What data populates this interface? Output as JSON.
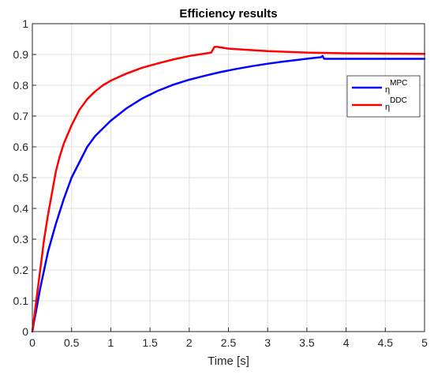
{
  "chart_data": {
    "type": "line",
    "title": "Efficiency results",
    "xlabel": "Time [s]",
    "ylabel": "",
    "xlim": [
      0,
      5
    ],
    "ylim": [
      0,
      1
    ],
    "x_ticks": [
      0,
      0.5,
      1,
      1.5,
      2,
      2.5,
      3,
      3.5,
      4,
      4.5,
      5
    ],
    "x_tick_labels": [
      "0",
      "0.5",
      "1",
      "1.5",
      "2",
      "2.5",
      "3",
      "3.5",
      "4",
      "4.5",
      "5"
    ],
    "y_ticks": [
      0,
      0.1,
      0.2,
      0.3,
      0.4,
      0.5,
      0.6,
      0.7,
      0.8,
      0.9,
      1
    ],
    "y_tick_labels": [
      "0",
      "0.1",
      "0.2",
      "0.3",
      "0.4",
      "0.5",
      "0.6",
      "0.7",
      "0.8",
      "0.9",
      "1"
    ],
    "grid": true,
    "legend_position": "right",
    "series": [
      {
        "name": "MPC",
        "legend_symbol": "η",
        "color": "#0000ff",
        "x": [
          0,
          0.02,
          0.05,
          0.1,
          0.15,
          0.2,
          0.3,
          0.4,
          0.5,
          0.6,
          0.7,
          0.8,
          0.9,
          1.0,
          1.2,
          1.4,
          1.6,
          1.8,
          2.0,
          2.2,
          2.4,
          2.6,
          2.8,
          3.0,
          3.2,
          3.4,
          3.6,
          3.68,
          3.7,
          3.72,
          3.8,
          4.0,
          4.5,
          5.0
        ],
        "y": [
          0,
          0.03,
          0.07,
          0.14,
          0.2,
          0.26,
          0.35,
          0.43,
          0.5,
          0.55,
          0.6,
          0.635,
          0.66,
          0.685,
          0.725,
          0.757,
          0.782,
          0.802,
          0.818,
          0.831,
          0.843,
          0.853,
          0.862,
          0.87,
          0.877,
          0.883,
          0.889,
          0.891,
          0.895,
          0.886,
          0.886,
          0.886,
          0.886,
          0.886
        ]
      },
      {
        "name": "DDC",
        "legend_symbol": "η",
        "color": "#ff0000",
        "x": [
          0,
          0.02,
          0.05,
          0.1,
          0.15,
          0.2,
          0.25,
          0.3,
          0.35,
          0.4,
          0.5,
          0.6,
          0.7,
          0.8,
          0.9,
          1.0,
          1.2,
          1.4,
          1.6,
          1.8,
          2.0,
          2.2,
          2.28,
          2.32,
          2.35,
          2.5,
          3.0,
          3.5,
          4.0,
          4.5,
          5.0
        ],
        "y": [
          0,
          0.04,
          0.1,
          0.2,
          0.3,
          0.38,
          0.45,
          0.52,
          0.57,
          0.61,
          0.67,
          0.72,
          0.755,
          0.78,
          0.8,
          0.815,
          0.838,
          0.857,
          0.871,
          0.884,
          0.895,
          0.903,
          0.906,
          0.924,
          0.925,
          0.919,
          0.911,
          0.906,
          0.904,
          0.903,
          0.902
        ]
      }
    ]
  }
}
